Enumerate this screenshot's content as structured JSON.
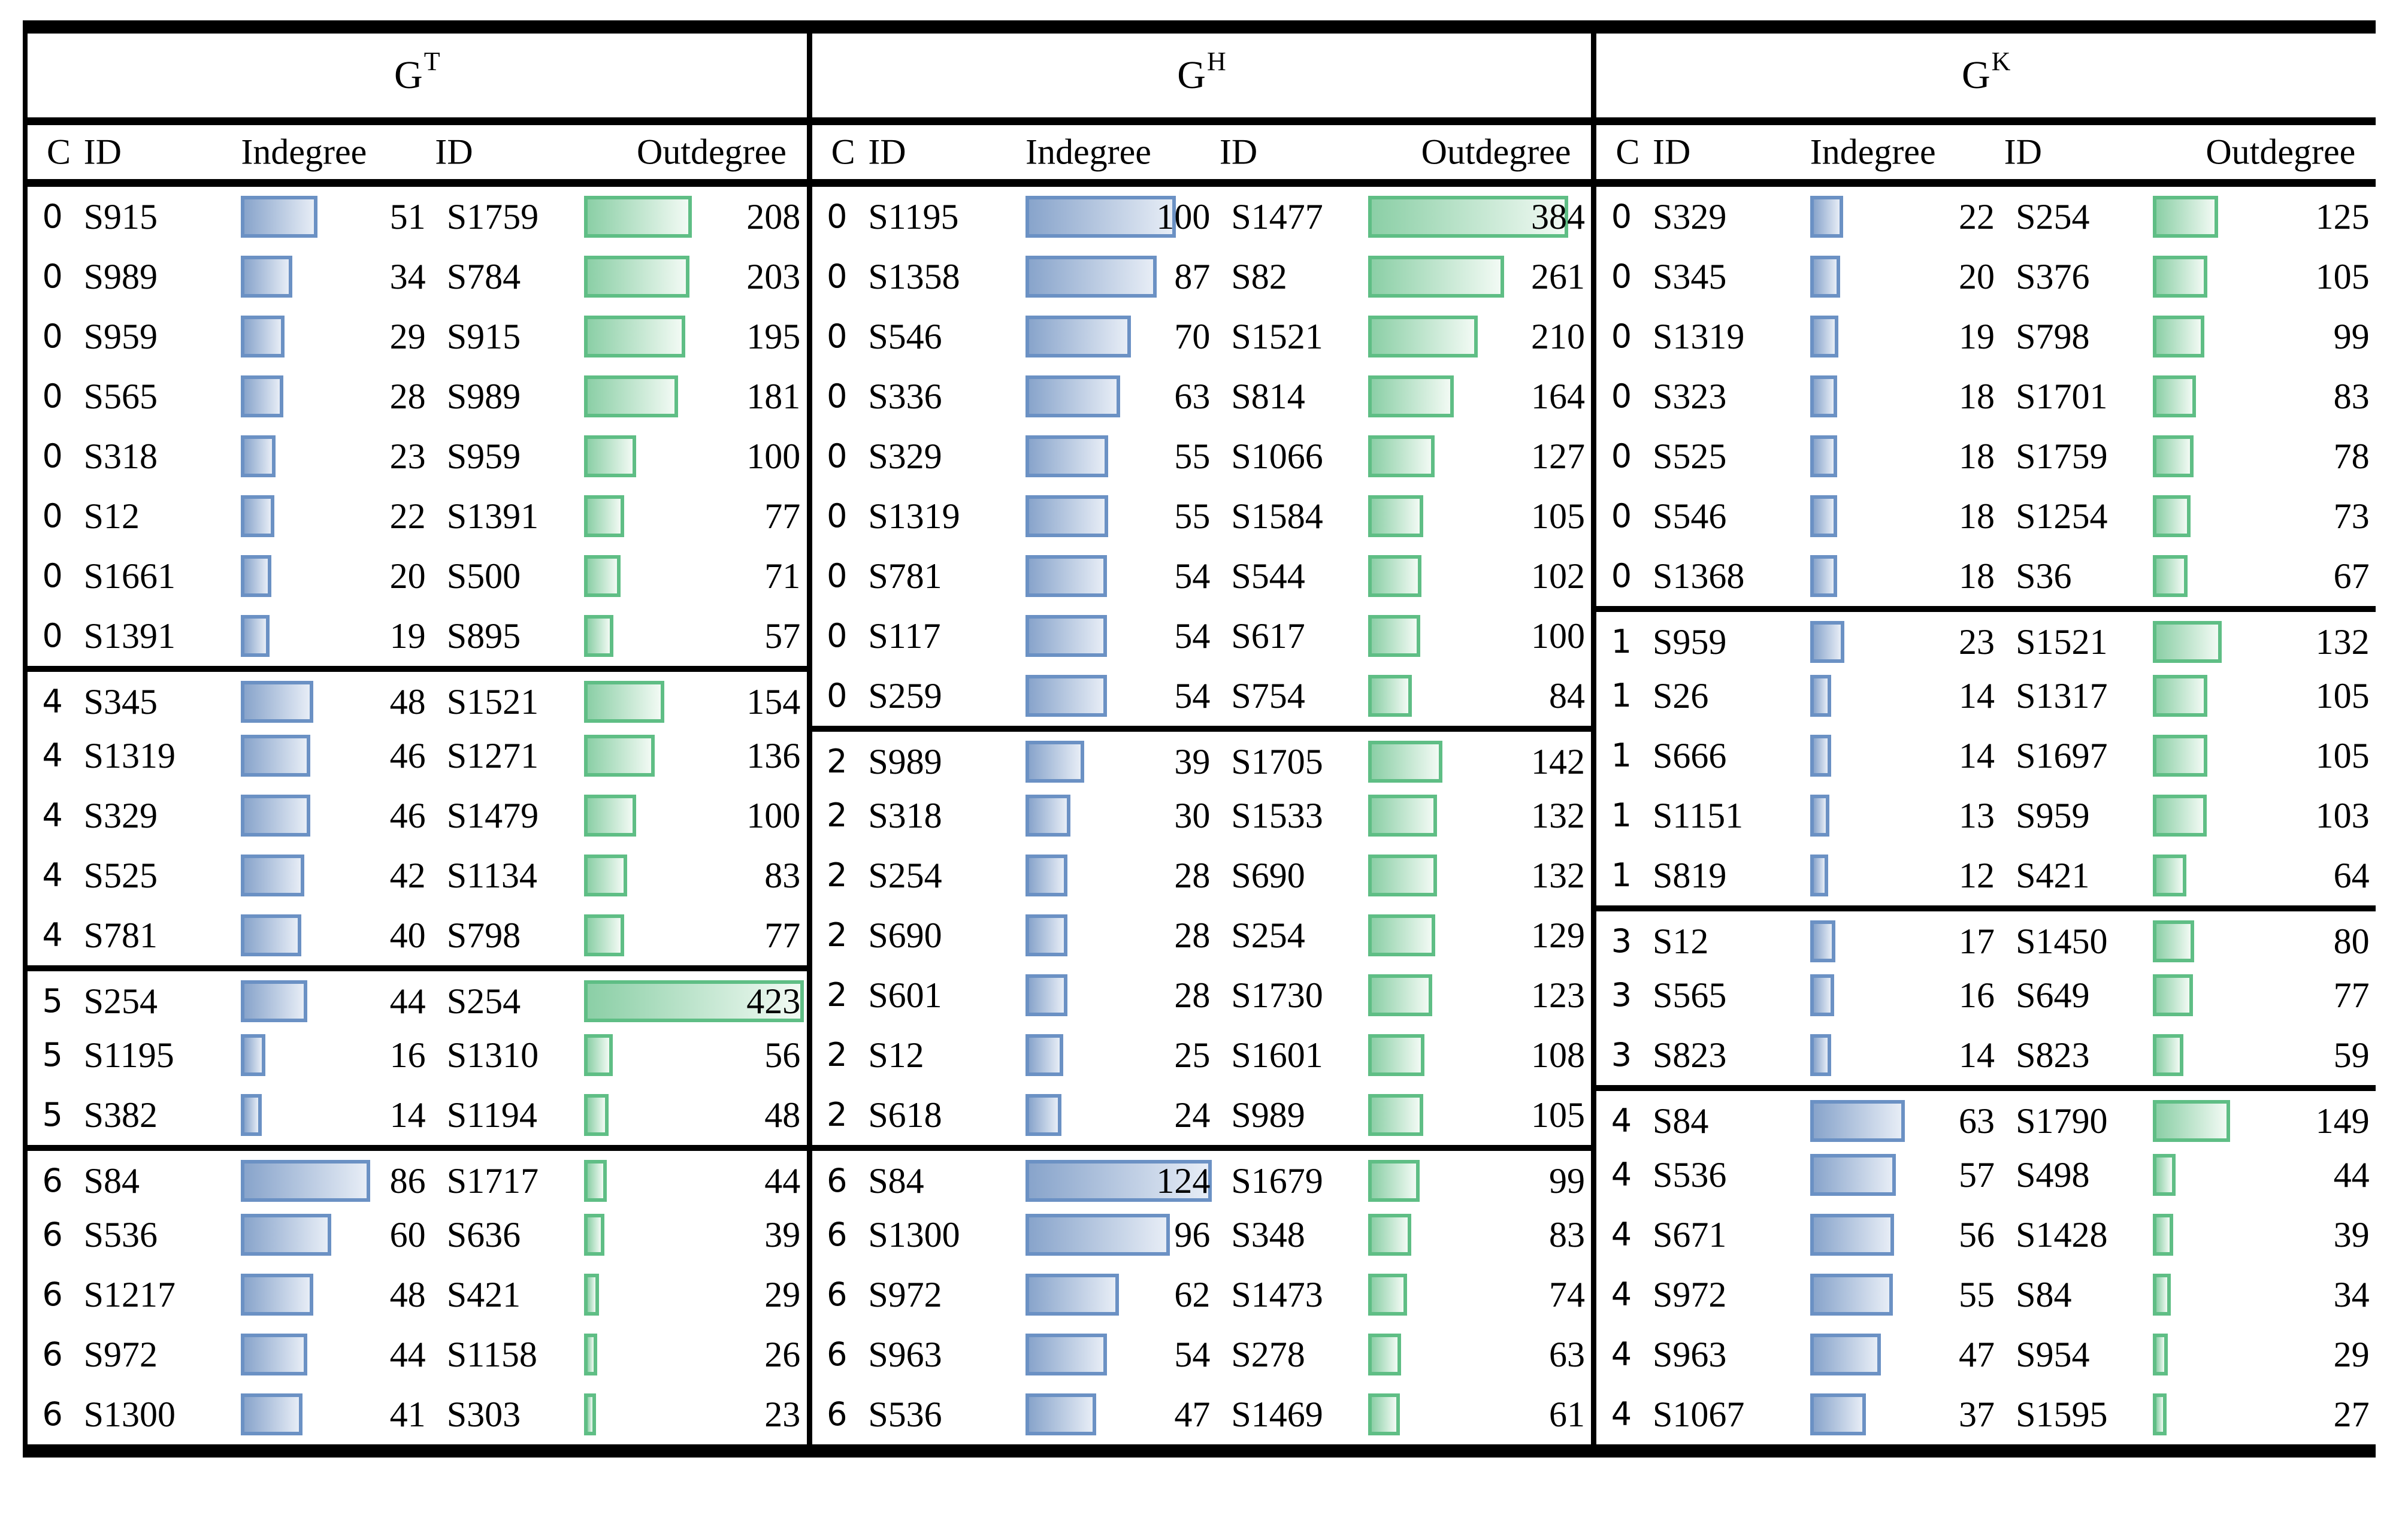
{
  "table": {
    "col_headers": [
      "C",
      "ID",
      "Indegree",
      "ID",
      "Outdegree"
    ],
    "colors": {
      "indegree_bar_border": "#6b91c4",
      "indegree_bar_fill_left": "#88a4cb",
      "indegree_bar_fill_right": "#e7edf6",
      "outdegree_bar_border": "#5fbe85",
      "outdegree_bar_fill_left": "#8bcfa6",
      "outdegree_bar_fill_right": "#f2faf4",
      "rule": "#000000"
    },
    "sections": [
      {
        "title": {
          "base": "G",
          "sup": "T"
        },
        "clusters": [
          {
            "rows": [
              {
                "c": "0",
                "id_in": "S915",
                "in": 51,
                "id_out": "S1759",
                "out": 208
              },
              {
                "c": "0",
                "id_in": "S989",
                "in": 34,
                "id_out": "S784",
                "out": 203
              },
              {
                "c": "0",
                "id_in": "S959",
                "in": 29,
                "id_out": "S915",
                "out": 195
              },
              {
                "c": "0",
                "id_in": "S565",
                "in": 28,
                "id_out": "S989",
                "out": 181
              },
              {
                "c": "0",
                "id_in": "S318",
                "in": 23,
                "id_out": "S959",
                "out": 100
              },
              {
                "c": "0",
                "id_in": "S12",
                "in": 22,
                "id_out": "S1391",
                "out": 77
              },
              {
                "c": "0",
                "id_in": "S1661",
                "in": 20,
                "id_out": "S500",
                "out": 71
              },
              {
                "c": "0",
                "id_in": "S1391",
                "in": 19,
                "id_out": "S895",
                "out": 57
              }
            ]
          },
          {
            "rows": [
              {
                "c": "4",
                "id_in": "S345",
                "in": 48,
                "id_out": "S1521",
                "out": 154
              },
              {
                "c": "4",
                "id_in": "S1319",
                "in": 46,
                "id_out": "S1271",
                "out": 136
              },
              {
                "c": "4",
                "id_in": "S329",
                "in": 46,
                "id_out": "S1479",
                "out": 100
              },
              {
                "c": "4",
                "id_in": "S525",
                "in": 42,
                "id_out": "S1134",
                "out": 83
              },
              {
                "c": "4",
                "id_in": "S781",
                "in": 40,
                "id_out": "S798",
                "out": 77
              }
            ]
          },
          {
            "rows": [
              {
                "c": "5",
                "id_in": "S254",
                "in": 44,
                "id_out": "S254",
                "out": 423
              },
              {
                "c": "5",
                "id_in": "S1195",
                "in": 16,
                "id_out": "S1310",
                "out": 56
              },
              {
                "c": "5",
                "id_in": "S382",
                "in": 14,
                "id_out": "S1194",
                "out": 48
              }
            ]
          },
          {
            "rows": [
              {
                "c": "6",
                "id_in": "S84",
                "in": 86,
                "id_out": "S1717",
                "out": 44
              },
              {
                "c": "6",
                "id_in": "S536",
                "in": 60,
                "id_out": "S636",
                "out": 39
              },
              {
                "c": "6",
                "id_in": "S1217",
                "in": 48,
                "id_out": "S421",
                "out": 29
              },
              {
                "c": "6",
                "id_in": "S972",
                "in": 44,
                "id_out": "S1158",
                "out": 26
              },
              {
                "c": "6",
                "id_in": "S1300",
                "in": 41,
                "id_out": "S303",
                "out": 23
              }
            ]
          }
        ]
      },
      {
        "title": {
          "base": "G",
          "sup": "H"
        },
        "clusters": [
          {
            "rows": [
              {
                "c": "0",
                "id_in": "S1195",
                "in": 100,
                "id_out": "S1477",
                "out": 384
              },
              {
                "c": "0",
                "id_in": "S1358",
                "in": 87,
                "id_out": "S82",
                "out": 261
              },
              {
                "c": "0",
                "id_in": "S546",
                "in": 70,
                "id_out": "S1521",
                "out": 210
              },
              {
                "c": "0",
                "id_in": "S336",
                "in": 63,
                "id_out": "S814",
                "out": 164
              },
              {
                "c": "0",
                "id_in": "S329",
                "in": 55,
                "id_out": "S1066",
                "out": 127
              },
              {
                "c": "0",
                "id_in": "S1319",
                "in": 55,
                "id_out": "S1584",
                "out": 105
              },
              {
                "c": "0",
                "id_in": "S781",
                "in": 54,
                "id_out": "S544",
                "out": 102
              },
              {
                "c": "0",
                "id_in": "S117",
                "in": 54,
                "id_out": "S617",
                "out": 100
              },
              {
                "c": "0",
                "id_in": "S259",
                "in": 54,
                "id_out": "S754",
                "out": 84
              }
            ]
          },
          {
            "rows": [
              {
                "c": "2",
                "id_in": "S989",
                "in": 39,
                "id_out": "S1705",
                "out": 142
              },
              {
                "c": "2",
                "id_in": "S318",
                "in": 30,
                "id_out": "S1533",
                "out": 132
              },
              {
                "c": "2",
                "id_in": "S254",
                "in": 28,
                "id_out": "S690",
                "out": 132
              },
              {
                "c": "2",
                "id_in": "S690",
                "in": 28,
                "id_out": "S254",
                "out": 129
              },
              {
                "c": "2",
                "id_in": "S601",
                "in": 28,
                "id_out": "S1730",
                "out": 123
              },
              {
                "c": "2",
                "id_in": "S12",
                "in": 25,
                "id_out": "S1601",
                "out": 108
              },
              {
                "c": "2",
                "id_in": "S618",
                "in": 24,
                "id_out": "S989",
                "out": 105
              }
            ]
          },
          {
            "rows": [
              {
                "c": "6",
                "id_in": "S84",
                "in": 124,
                "id_out": "S1679",
                "out": 99
              },
              {
                "c": "6",
                "id_in": "S1300",
                "in": 96,
                "id_out": "S348",
                "out": 83
              },
              {
                "c": "6",
                "id_in": "S972",
                "in": 62,
                "id_out": "S1473",
                "out": 74
              },
              {
                "c": "6",
                "id_in": "S963",
                "in": 54,
                "id_out": "S278",
                "out": 63
              },
              {
                "c": "6",
                "id_in": "S536",
                "in": 47,
                "id_out": "S1469",
                "out": 61
              }
            ]
          }
        ]
      },
      {
        "title": {
          "base": "G",
          "sup": "K"
        },
        "clusters": [
          {
            "rows": [
              {
                "c": "0",
                "id_in": "S329",
                "in": 22,
                "id_out": "S254",
                "out": 125
              },
              {
                "c": "0",
                "id_in": "S345",
                "in": 20,
                "id_out": "S376",
                "out": 105
              },
              {
                "c": "0",
                "id_in": "S1319",
                "in": 19,
                "id_out": "S798",
                "out": 99
              },
              {
                "c": "0",
                "id_in": "S323",
                "in": 18,
                "id_out": "S1701",
                "out": 83
              },
              {
                "c": "0",
                "id_in": "S525",
                "in": 18,
                "id_out": "S1759",
                "out": 78
              },
              {
                "c": "0",
                "id_in": "S546",
                "in": 18,
                "id_out": "S1254",
                "out": 73
              },
              {
                "c": "0",
                "id_in": "S1368",
                "in": 18,
                "id_out": "S36",
                "out": 67
              }
            ]
          },
          {
            "rows": [
              {
                "c": "1",
                "id_in": "S959",
                "in": 23,
                "id_out": "S1521",
                "out": 132
              },
              {
                "c": "1",
                "id_in": "S26",
                "in": 14,
                "id_out": "S1317",
                "out": 105
              },
              {
                "c": "1",
                "id_in": "S666",
                "in": 14,
                "id_out": "S1697",
                "out": 105
              },
              {
                "c": "1",
                "id_in": "S1151",
                "in": 13,
                "id_out": "S959",
                "out": 103
              },
              {
                "c": "1",
                "id_in": "S819",
                "in": 12,
                "id_out": "S421",
                "out": 64
              }
            ]
          },
          {
            "rows": [
              {
                "c": "3",
                "id_in": "S12",
                "in": 17,
                "id_out": "S1450",
                "out": 80
              },
              {
                "c": "3",
                "id_in": "S565",
                "in": 16,
                "id_out": "S649",
                "out": 77
              },
              {
                "c": "3",
                "id_in": "S823",
                "in": 14,
                "id_out": "S823",
                "out": 59
              }
            ]
          },
          {
            "rows": [
              {
                "c": "4",
                "id_in": "S84",
                "in": 63,
                "id_out": "S1790",
                "out": 149
              },
              {
                "c": "4",
                "id_in": "S536",
                "in": 57,
                "id_out": "S498",
                "out": 44
              },
              {
                "c": "4",
                "id_in": "S671",
                "in": 56,
                "id_out": "S1428",
                "out": 39
              },
              {
                "c": "4",
                "id_in": "S972",
                "in": 55,
                "id_out": "S84",
                "out": 34
              },
              {
                "c": "4",
                "id_in": "S963",
                "in": 47,
                "id_out": "S954",
                "out": 29
              },
              {
                "c": "4",
                "id_in": "S1067",
                "in": 37,
                "id_out": "S1595",
                "out": 27
              }
            ]
          }
        ]
      }
    ]
  }
}
